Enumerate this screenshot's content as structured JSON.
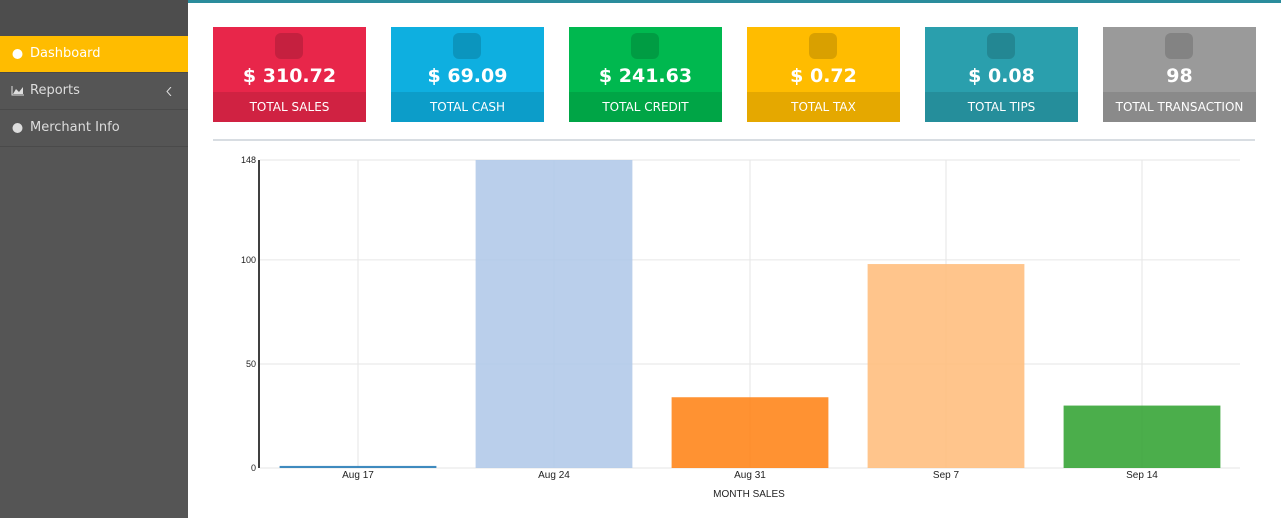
{
  "sidebar": {
    "items": [
      "Dashboard",
      "Reports",
      "Merchant Info"
    ]
  },
  "cards": [
    {
      "value": "$ 310.72",
      "label": "TOTAL SALES",
      "color": "#e8264a"
    },
    {
      "value": "$ 69.09",
      "label": "TOTAL CASH",
      "color": "#0eafe0"
    },
    {
      "value": "$ 241.63",
      "label": "TOTAL CREDIT",
      "color": "#00b84f"
    },
    {
      "value": "$ 0.72",
      "label": "TOTAL TAX",
      "color": "#ffbc00"
    },
    {
      "value": "$ 0.08",
      "label": "TOTAL TIPS",
      "color": "#2a9fad"
    },
    {
      "value": "98",
      "label": "TOTAL TRANSACTION",
      "color": "#9a9a9a"
    }
  ],
  "chart_data": {
    "type": "bar",
    "categories": [
      "Aug 17",
      "Aug 24",
      "Aug 31",
      "Sep 7",
      "Sep 14"
    ],
    "values": [
      1,
      148,
      34,
      98,
      30
    ],
    "colors": [
      "#1f77b4",
      "#aec7e8",
      "#ff7f0e",
      "#ffbb78",
      "#2ca02c"
    ],
    "ylim": [
      0,
      148
    ],
    "yticks": [
      0,
      50,
      100,
      148
    ],
    "x_label": "MONTH SALES",
    "grid": true
  }
}
